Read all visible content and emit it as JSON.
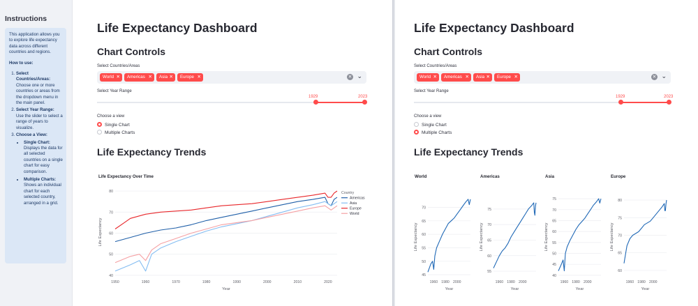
{
  "sidebar": {
    "title": "Instructions",
    "intro": "This application allows you to explore life expectancy data across different countries and regions.",
    "how_to_use": "How to use:",
    "steps": [
      {
        "title": "Select Countries/Areas:",
        "text": "Choose one or more countries or areas from the dropdown menu in the main panel."
      },
      {
        "title": "Select Year Range:",
        "text": "Use the slider to select a range of years to visualize."
      },
      {
        "title": "Choose a View:",
        "text": ""
      }
    ],
    "views": [
      {
        "title": "Single Chart:",
        "text": "Displays the data for all selected countries on a single chart for easy comparison."
      },
      {
        "title": "Multiple Charts:",
        "text": "Shows an individual chart for each selected country, arranged in a grid."
      }
    ]
  },
  "main": {
    "title": "Life Expectancy Dashboard",
    "controls_heading": "Chart Controls",
    "select_label": "Select Countries/Areas",
    "selected_tags": [
      "World",
      "Americas",
      "Asia",
      "Europe"
    ],
    "year_label": "Select Year Range",
    "year_min": "1929",
    "year_max": "2023",
    "view_label": "Choose a view",
    "view_options": [
      "Single Chart",
      "Multiple Charts"
    ],
    "trends_heading": "Life Expectancy Trends"
  },
  "left_panel": {
    "selected_view": "Single Chart"
  },
  "right_panel": {
    "selected_view": "Multiple Charts"
  },
  "colors": {
    "accent": "#ff4b4b",
    "americas": "#1f5fa8",
    "asia": "#84bdf2",
    "europe": "#e8262a",
    "world": "#f5a0a3",
    "line_single": "#1f68b6"
  },
  "chart_data": [
    {
      "type": "line",
      "title": "Life Expectancy Over Time",
      "xlabel": "Year",
      "ylabel": "Life Expectancy",
      "legend_title": "Country",
      "legend_position": "right",
      "xlim": [
        1950,
        2023
      ],
      "ylim": [
        39,
        82
      ],
      "x_ticks": [
        1950,
        1960,
        1970,
        1980,
        1990,
        2000,
        2010,
        2020
      ],
      "y_ticks": [
        40,
        50,
        60,
        70,
        80
      ],
      "series": [
        {
          "name": "Americas",
          "color": "#1f5fa8",
          "points": [
            [
              1950,
              56
            ],
            [
              1955,
              58
            ],
            [
              1960,
              60
            ],
            [
              1965,
              61.5
            ],
            [
              1970,
              62.5
            ],
            [
              1975,
              64
            ],
            [
              1980,
              66
            ],
            [
              1985,
              67.5
            ],
            [
              1990,
              69
            ],
            [
              1995,
              70.5
            ],
            [
              2000,
              72
            ],
            [
              2005,
              73.5
            ],
            [
              2010,
              75
            ],
            [
              2015,
              76
            ],
            [
              2019,
              77
            ],
            [
              2020,
              74
            ],
            [
              2021,
              73
            ],
            [
              2022,
              76
            ],
            [
              2023,
              77
            ]
          ]
        },
        {
          "name": "Asia",
          "color": "#84bdf2",
          "points": [
            [
              1950,
              42
            ],
            [
              1955,
              45
            ],
            [
              1958,
              47
            ],
            [
              1960,
              42
            ],
            [
              1962,
              50
            ],
            [
              1965,
              53
            ],
            [
              1970,
              56
            ],
            [
              1975,
              58.5
            ],
            [
              1980,
              61
            ],
            [
              1985,
              63
            ],
            [
              1990,
              64.5
            ],
            [
              1995,
              66
            ],
            [
              2000,
              68
            ],
            [
              2005,
              70
            ],
            [
              2010,
              72
            ],
            [
              2015,
              73.5
            ],
            [
              2019,
              75
            ],
            [
              2021,
              73
            ],
            [
              2023,
              75
            ]
          ]
        },
        {
          "name": "Europe",
          "color": "#e8262a",
          "points": [
            [
              1950,
              62
            ],
            [
              1953,
              65
            ],
            [
              1955,
              67
            ],
            [
              1960,
              69
            ],
            [
              1965,
              70
            ],
            [
              1970,
              70.5
            ],
            [
              1975,
              71
            ],
            [
              1980,
              72
            ],
            [
              1985,
              73
            ],
            [
              1990,
              73.5
            ],
            [
              1995,
              74
            ],
            [
              2000,
              75
            ],
            [
              2005,
              76
            ],
            [
              2010,
              77
            ],
            [
              2015,
              78
            ],
            [
              2019,
              79
            ],
            [
              2020,
              77
            ],
            [
              2021,
              77
            ],
            [
              2022,
              79
            ],
            [
              2023,
              80
            ]
          ]
        },
        {
          "name": "World",
          "color": "#f5a0a3",
          "points": [
            [
              1950,
              46
            ],
            [
              1955,
              49
            ],
            [
              1958,
              50
            ],
            [
              1960,
              47
            ],
            [
              1962,
              52
            ],
            [
              1965,
              55
            ],
            [
              1970,
              57.5
            ],
            [
              1975,
              60
            ],
            [
              1980,
              62
            ],
            [
              1985,
              64
            ],
            [
              1990,
              65
            ],
            [
              1995,
              66
            ],
            [
              2000,
              67.5
            ],
            [
              2005,
              69
            ],
            [
              2010,
              70.5
            ],
            [
              2015,
              72
            ],
            [
              2019,
              73
            ],
            [
              2021,
              71
            ],
            [
              2023,
              73
            ]
          ]
        }
      ]
    },
    {
      "type": "line",
      "title": "World",
      "xlabel": "Year",
      "ylabel": "Life Expectancy",
      "xlim": [
        1950,
        2023
      ],
      "ylim": [
        44,
        74
      ],
      "x_ticks": [
        1960,
        1980,
        2000
      ],
      "y_ticks": [
        45,
        50,
        55,
        60,
        65,
        70
      ],
      "series": [
        {
          "name": "World",
          "color": "#1f68b6",
          "points": [
            [
              1950,
              46
            ],
            [
              1955,
              49
            ],
            [
              1958,
              50
            ],
            [
              1960,
              47
            ],
            [
              1962,
              52
            ],
            [
              1965,
              55
            ],
            [
              1970,
              57.5
            ],
            [
              1975,
              60
            ],
            [
              1980,
              62
            ],
            [
              1985,
              64
            ],
            [
              1990,
              65
            ],
            [
              1995,
              66
            ],
            [
              2000,
              67.5
            ],
            [
              2005,
              69
            ],
            [
              2010,
              70.5
            ],
            [
              2015,
              72
            ],
            [
              2019,
              73
            ],
            [
              2021,
              71
            ],
            [
              2023,
              73
            ]
          ]
        }
      ]
    },
    {
      "type": "line",
      "title": "Americas",
      "xlabel": "Year",
      "ylabel": "Life Expectancy",
      "xlim": [
        1950,
        2023
      ],
      "ylim": [
        53,
        79
      ],
      "x_ticks": [
        1960,
        1980,
        2000
      ],
      "y_ticks": [
        55,
        60,
        65,
        70,
        75
      ],
      "series": [
        {
          "name": "Americas",
          "color": "#1f68b6",
          "points": [
            [
              1950,
              56
            ],
            [
              1955,
              58
            ],
            [
              1960,
              60
            ],
            [
              1965,
              61.5
            ],
            [
              1970,
              62.5
            ],
            [
              1975,
              64
            ],
            [
              1980,
              66
            ],
            [
              1985,
              67.5
            ],
            [
              1990,
              69
            ],
            [
              1995,
              70.5
            ],
            [
              2000,
              72
            ],
            [
              2005,
              73.5
            ],
            [
              2010,
              75
            ],
            [
              2015,
              76
            ],
            [
              2019,
              77
            ],
            [
              2020,
              74
            ],
            [
              2021,
              73
            ],
            [
              2022,
              76
            ],
            [
              2023,
              77
            ]
          ]
        }
      ]
    },
    {
      "type": "line",
      "title": "Asia",
      "xlabel": "Year",
      "ylabel": "Life Expectancy",
      "xlim": [
        1950,
        2023
      ],
      "ylim": [
        39,
        76
      ],
      "x_ticks": [
        1960,
        1980,
        2000
      ],
      "y_ticks": [
        40,
        45,
        50,
        55,
        60,
        65,
        70,
        75
      ],
      "series": [
        {
          "name": "Asia",
          "color": "#1f68b6",
          "points": [
            [
              1950,
              42
            ],
            [
              1955,
              45
            ],
            [
              1958,
              47
            ],
            [
              1960,
              42
            ],
            [
              1962,
              50
            ],
            [
              1965,
              53
            ],
            [
              1970,
              56
            ],
            [
              1975,
              58.5
            ],
            [
              1980,
              61
            ],
            [
              1985,
              63
            ],
            [
              1990,
              64.5
            ],
            [
              1995,
              66
            ],
            [
              2000,
              68
            ],
            [
              2005,
              70
            ],
            [
              2010,
              72
            ],
            [
              2015,
              73.5
            ],
            [
              2019,
              75
            ],
            [
              2021,
              73
            ],
            [
              2023,
              75
            ]
          ]
        }
      ]
    },
    {
      "type": "line",
      "title": "Europe",
      "xlabel": "Year",
      "ylabel": "Life Expectancy",
      "xlim": [
        1950,
        2023
      ],
      "ylim": [
        58,
        81
      ],
      "x_ticks": [
        1960,
        1980,
        2000
      ],
      "y_ticks": [
        60,
        65,
        70,
        75,
        80
      ],
      "series": [
        {
          "name": "Europe",
          "color": "#1f68b6",
          "points": [
            [
              1950,
              62
            ],
            [
              1953,
              65
            ],
            [
              1955,
              67
            ],
            [
              1960,
              69
            ],
            [
              1965,
              70
            ],
            [
              1970,
              70.5
            ],
            [
              1975,
              71
            ],
            [
              1980,
              72
            ],
            [
              1985,
              73
            ],
            [
              1990,
              73.5
            ],
            [
              1995,
              74
            ],
            [
              2000,
              75
            ],
            [
              2005,
              76
            ],
            [
              2010,
              77
            ],
            [
              2015,
              78
            ],
            [
              2019,
              79
            ],
            [
              2020,
              77
            ],
            [
              2021,
              77
            ],
            [
              2022,
              79
            ],
            [
              2023,
              80
            ]
          ]
        }
      ]
    }
  ]
}
